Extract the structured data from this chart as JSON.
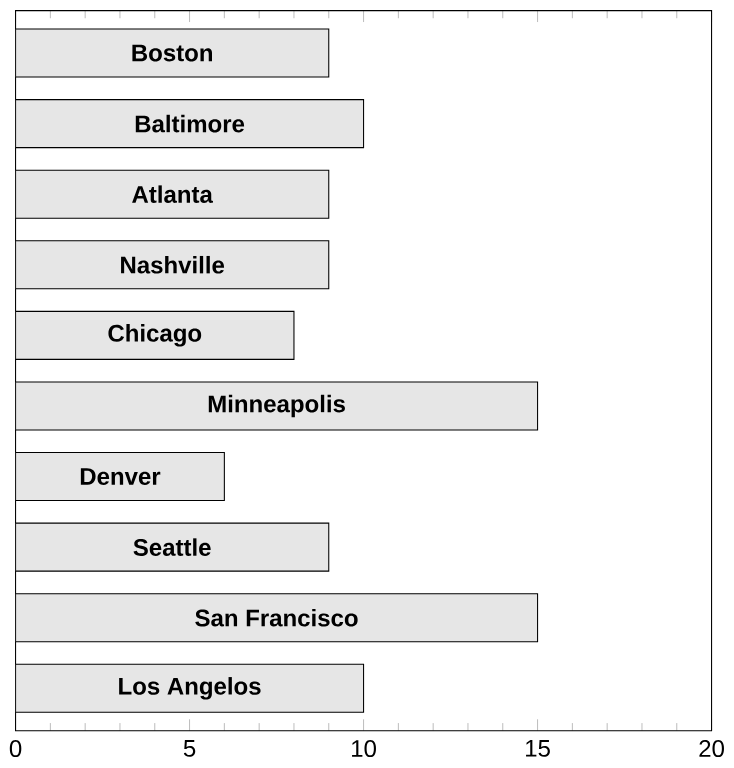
{
  "chart_data": {
    "type": "bar",
    "orientation": "horizontal",
    "categories": [
      "Boston",
      "Baltimore",
      "Atlanta",
      "Nashville",
      "Chicago",
      "Minneapolis",
      "Denver",
      "Seattle",
      "San Francisco",
      "Los Angelos"
    ],
    "values": [
      9,
      10,
      9,
      9,
      8,
      15,
      6,
      9,
      15,
      10
    ],
    "color": "#e6e6e6",
    "xlim": [
      0,
      20
    ],
    "xticks": [
      0,
      5,
      10,
      15,
      20
    ],
    "grid": false
  }
}
